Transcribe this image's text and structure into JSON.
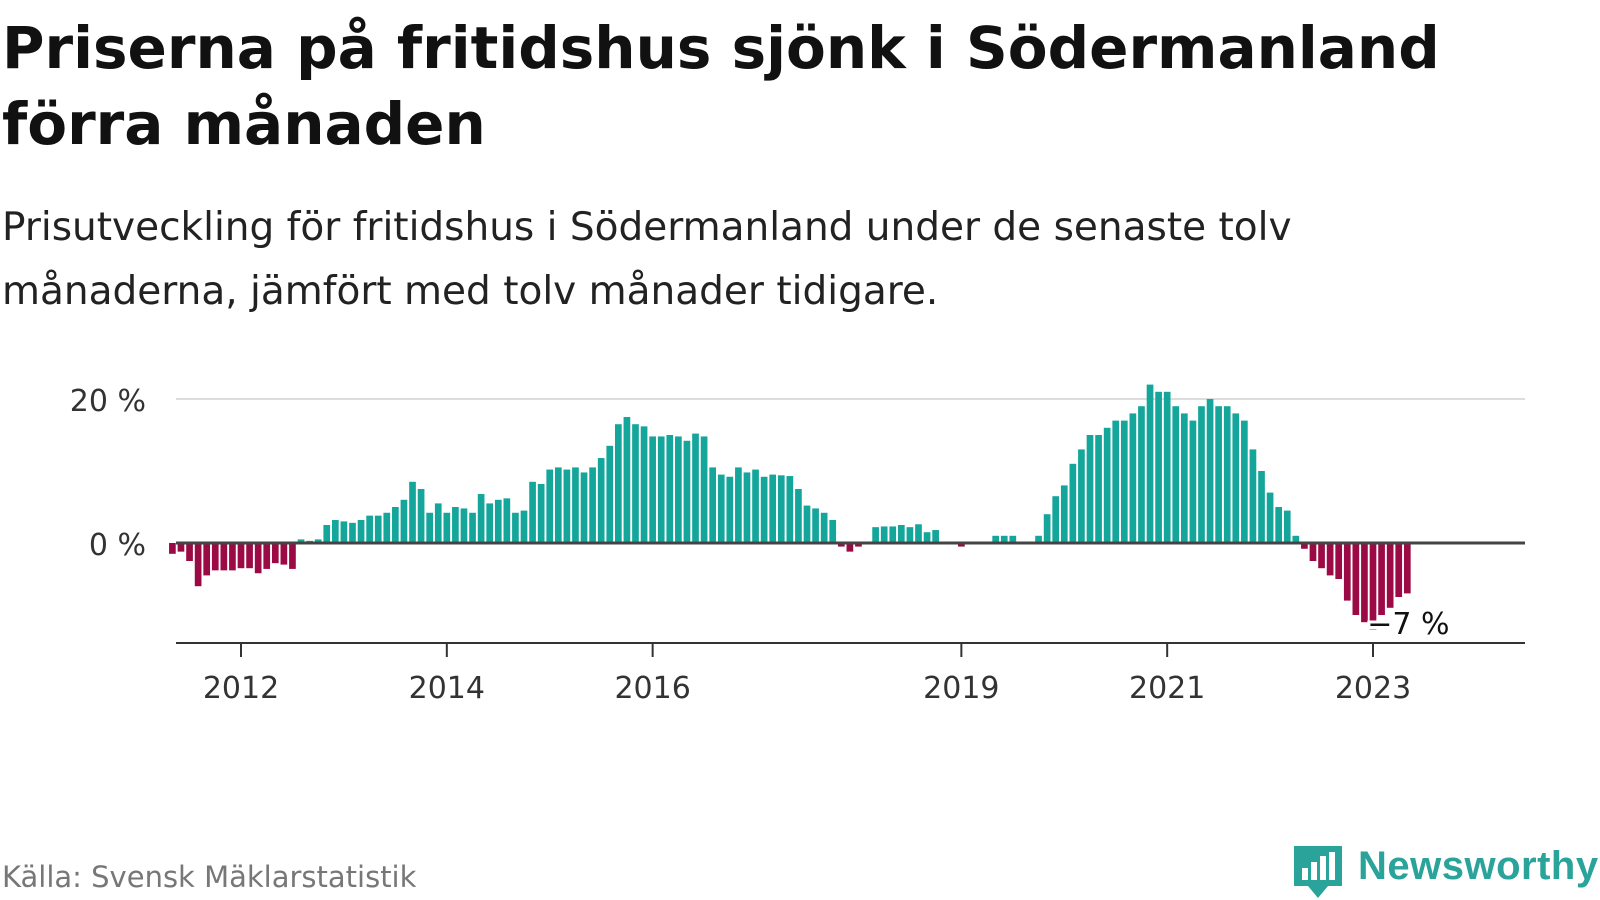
{
  "title": "Priserna på fritidshus sjönk i Södermanland förra månaden",
  "subtitle": "Prisutveckling för fritidshus i Södermanland under de senaste tolv månaderna, jämfört med tolv månader tidigare.",
  "source": "Källa: Svensk Mäklarstatistik",
  "brand": {
    "name": "Newsworthy",
    "icon": "newsworthy-logo-icon",
    "color": "#2aa39a"
  },
  "colors": {
    "positive": "#15a69b",
    "negative": "#9c0a45",
    "zero_line": "#444444",
    "grid": "#dddddd"
  },
  "chart_data": {
    "type": "bar",
    "title": "",
    "xlabel": "",
    "ylabel": "",
    "ylim": [
      -14,
      22
    ],
    "y_ticks": [
      {
        "value": 20,
        "label": "20 %"
      },
      {
        "value": 0,
        "label": "0 %"
      }
    ],
    "x_ticks": [
      "2012",
      "2014",
      "2016",
      "2019",
      "2021",
      "2023"
    ],
    "grid": true,
    "annotation": {
      "label": "−7 %"
    },
    "start_month": "2011-05",
    "values": [
      -1.5,
      -1.2,
      -2.5,
      -6.0,
      -4.5,
      -3.8,
      -3.8,
      -3.8,
      -3.5,
      -3.5,
      -4.2,
      -3.6,
      -2.8,
      -3.0,
      -3.6,
      0.5,
      0.3,
      0.5,
      2.5,
      3.2,
      3.0,
      2.8,
      3.2,
      3.8,
      3.8,
      4.2,
      5.0,
      6.0,
      8.5,
      7.5,
      4.2,
      5.5,
      4.2,
      5.0,
      4.8,
      4.2,
      6.8,
      5.5,
      6.0,
      6.2,
      4.2,
      4.5,
      8.5,
      8.2,
      10.2,
      10.5,
      10.2,
      10.5,
      9.8,
      10.5,
      11.8,
      13.5,
      16.5,
      17.5,
      16.5,
      16.2,
      14.8,
      14.8,
      15.0,
      14.8,
      14.2,
      15.2,
      14.8,
      10.5,
      9.5,
      9.2,
      10.5,
      9.8,
      10.2,
      9.2,
      9.5,
      9.4,
      9.3,
      7.5,
      5.2,
      4.8,
      4.2,
      3.2,
      -0.5,
      -1.2,
      -0.5,
      0.0,
      2.2,
      2.3,
      2.3,
      2.5,
      2.2,
      2.6,
      1.5,
      1.8,
      0.0,
      0.0,
      -0.5,
      0.0,
      0.0,
      0.0,
      1.0,
      1.0,
      1.0,
      0.0,
      0.0,
      1.0,
      4.0,
      6.5,
      8.0,
      11.0,
      13.0,
      15.0,
      15.0,
      16.0,
      17.0,
      17.0,
      18.0,
      19.0,
      22.0,
      21.0,
      21.0,
      19.0,
      18.0,
      17.0,
      19.0,
      20.0,
      19.0,
      19.0,
      18.0,
      17.0,
      13.0,
      10.0,
      7.0,
      5.0,
      4.5,
      1.0,
      -0.8,
      -2.5,
      -3.5,
      -4.5,
      -5.0,
      -8.0,
      -10.0,
      -11.0,
      -12.0,
      -10.0,
      -9.0,
      -7.5,
      -7.0
    ]
  }
}
